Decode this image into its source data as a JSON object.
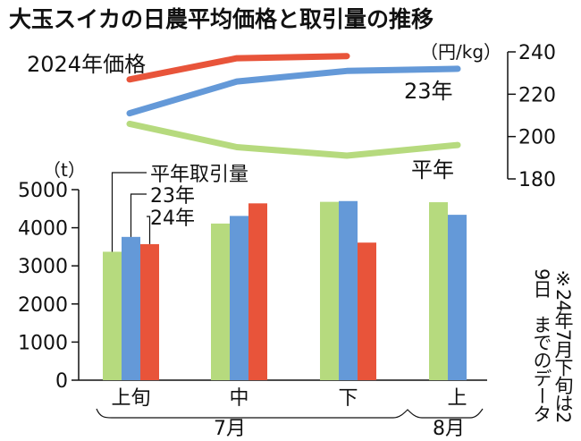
{
  "chart_data": [
    {
      "type": "line",
      "title": "大玉スイカの日農平均価格と取引量の推移",
      "unit": "（円/kg）",
      "ylim": [
        180,
        240
      ],
      "y_ticks": [
        "240",
        "220",
        "200",
        "180"
      ],
      "x": [
        "7月上旬",
        "7月中旬",
        "7月下旬",
        "8月上旬"
      ],
      "series": [
        {
          "name": "2024年価格",
          "color": "#e8543a",
          "values": [
            227,
            237,
            238,
            null
          ]
        },
        {
          "name": "23年",
          "color": "#6499d8",
          "values": [
            211,
            226,
            231,
            232
          ]
        },
        {
          "name": "平年",
          "color": "#b6da7e",
          "values": [
            206,
            195,
            191,
            196
          ]
        }
      ]
    },
    {
      "type": "bar",
      "unit": "（t）",
      "ylim": [
        0,
        5000
      ],
      "y_ticks": [
        "5000",
        "4000",
        "3000",
        "2000",
        "1000",
        "0"
      ],
      "categories": [
        "上旬",
        "中",
        "下",
        "上"
      ],
      "groups": [
        {
          "label": "7月",
          "span": [
            0,
            2
          ]
        },
        {
          "label": "8月",
          "span": [
            3,
            3
          ]
        }
      ],
      "series": [
        {
          "name": "平年取引量",
          "color": "#b6da7e",
          "values": [
            3370,
            4110,
            4680,
            4670
          ]
        },
        {
          "name": "23年",
          "color": "#6499d8",
          "values": [
            3760,
            4310,
            4700,
            4340
          ]
        },
        {
          "name": "24年",
          "color": "#e8543a",
          "values": [
            3570,
            4640,
            3610,
            null
          ]
        }
      ],
      "note": "※24年7月下旬は29日までのデータ"
    }
  ]
}
